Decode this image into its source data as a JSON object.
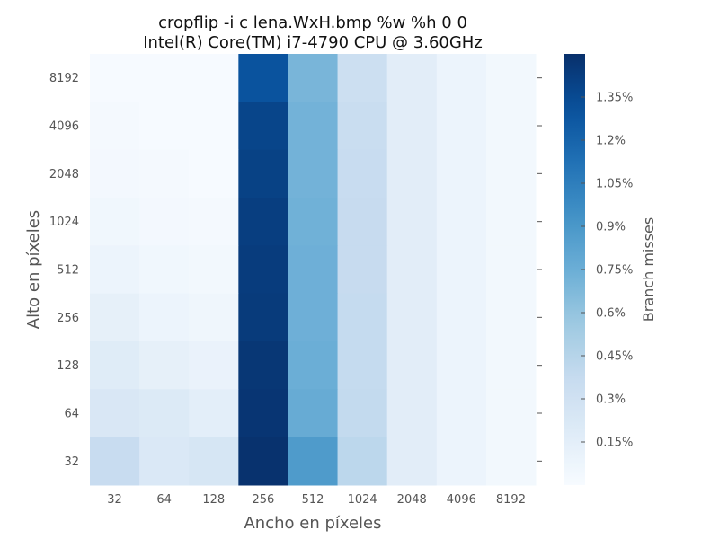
{
  "chart_data": {
    "type": "heatmap",
    "title": [
      "cropflip -i c lena.WxH.bmp %w %h 0 0",
      "Intel(R) Core(TM) i7-4790 CPU @ 3.60GHz"
    ],
    "xlabel": "Ancho en píxeles",
    "ylabel": "Alto en píxeles",
    "x_categories": [
      "32",
      "64",
      "128",
      "256",
      "512",
      "1024",
      "2048",
      "4096",
      "8192"
    ],
    "y_categories": [
      "8192",
      "4096",
      "2048",
      "1024",
      "512",
      "256",
      "128",
      "64",
      "32"
    ],
    "colorbar": {
      "label": "Branch misses",
      "min": 0.0,
      "max": 1.5,
      "colormap": "Blues",
      "ticks": [
        0.15,
        0.3,
        0.45,
        0.6,
        0.75,
        0.9,
        1.05,
        1.2,
        1.35
      ],
      "tick_labels": [
        "0.15%",
        "0.3%",
        "0.45%",
        "0.6%",
        "0.75%",
        "0.9%",
        "1.05%",
        "1.2%",
        "1.35%"
      ]
    },
    "values": [
      [
        0.01,
        0.01,
        0.01,
        1.3,
        0.7,
        0.33,
        0.16,
        0.08,
        0.04
      ],
      [
        0.02,
        0.01,
        0.01,
        1.38,
        0.72,
        0.35,
        0.16,
        0.08,
        0.04
      ],
      [
        0.03,
        0.02,
        0.01,
        1.4,
        0.72,
        0.36,
        0.16,
        0.08,
        0.04
      ],
      [
        0.05,
        0.03,
        0.02,
        1.42,
        0.73,
        0.37,
        0.16,
        0.08,
        0.04
      ],
      [
        0.08,
        0.05,
        0.04,
        1.43,
        0.74,
        0.37,
        0.16,
        0.08,
        0.04
      ],
      [
        0.13,
        0.08,
        0.06,
        1.44,
        0.74,
        0.38,
        0.16,
        0.08,
        0.04
      ],
      [
        0.18,
        0.13,
        0.1,
        1.46,
        0.75,
        0.38,
        0.16,
        0.08,
        0.04
      ],
      [
        0.23,
        0.2,
        0.15,
        1.47,
        0.77,
        0.39,
        0.16,
        0.08,
        0.04
      ],
      [
        0.36,
        0.22,
        0.25,
        1.49,
        0.88,
        0.42,
        0.16,
        0.08,
        0.04
      ]
    ]
  }
}
